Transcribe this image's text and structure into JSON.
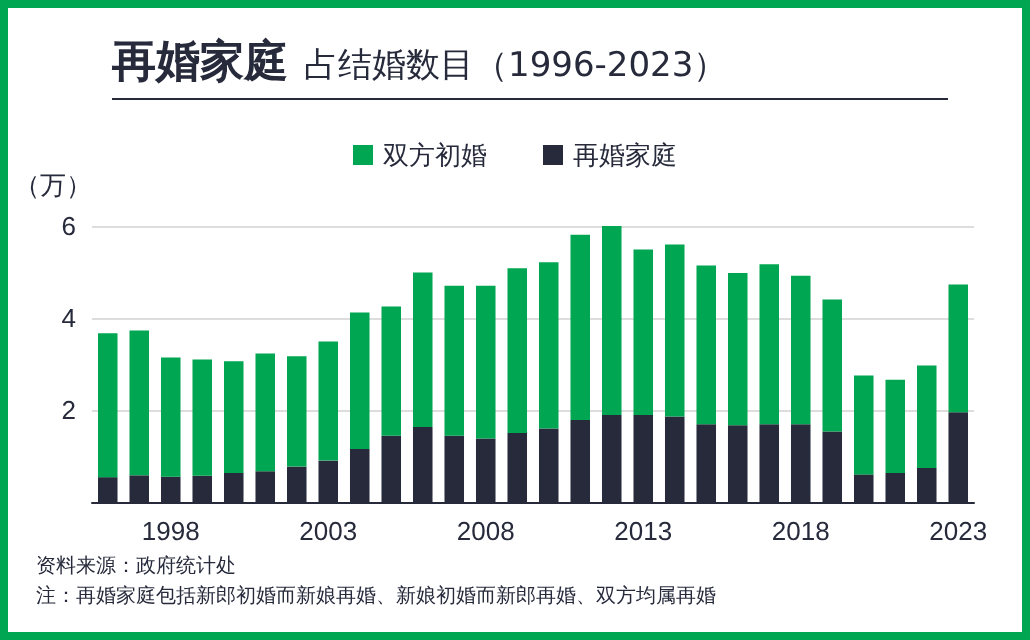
{
  "chart_data": {
    "type": "bar",
    "title": "再婚家庭",
    "subtitle": "占结婚数目（1996-2023）",
    "ylabel": "（万）",
    "categories": [
      null,
      null,
      "1998",
      null,
      null,
      null,
      null,
      "2003",
      null,
      null,
      null,
      null,
      "2008",
      null,
      null,
      null,
      null,
      "2013",
      null,
      null,
      null,
      null,
      "2018",
      null,
      null,
      null,
      null,
      "2023"
    ],
    "series": [
      {
        "name": "再婚家庭",
        "color": "#262a3b",
        "values": [
          0.54,
          0.58,
          0.55,
          0.57,
          0.63,
          0.67,
          0.77,
          0.9,
          1.15,
          1.44,
          1.63,
          1.44,
          1.38,
          1.5,
          1.6,
          1.78,
          1.89,
          1.89,
          1.86,
          1.69,
          1.67,
          1.69,
          1.69,
          1.53,
          0.6,
          0.63,
          0.74,
          1.95
        ]
      },
      {
        "name": "双方初婚",
        "color": "#00a651",
        "values": [
          3.13,
          3.15,
          2.59,
          2.53,
          2.43,
          2.56,
          2.4,
          2.59,
          2.97,
          2.81,
          3.36,
          3.26,
          3.32,
          3.58,
          3.61,
          4.03,
          4.11,
          3.6,
          3.74,
          3.45,
          3.31,
          3.48,
          3.23,
          2.87,
          2.15,
          2.03,
          2.23,
          2.78
        ]
      }
    ],
    "stacked": true,
    "ylim": [
      0,
      6
    ],
    "yticks": [
      {
        "value": 0,
        "label": null
      },
      2,
      4,
      6
    ],
    "grid": "y",
    "legend": "top",
    "annotations": [
      "资料来源：政府统计处",
      "注：再婚家庭包括新郎初婚而新娘再婚、新娘初婚而新郎再婚、双方均属再婚"
    ]
  }
}
